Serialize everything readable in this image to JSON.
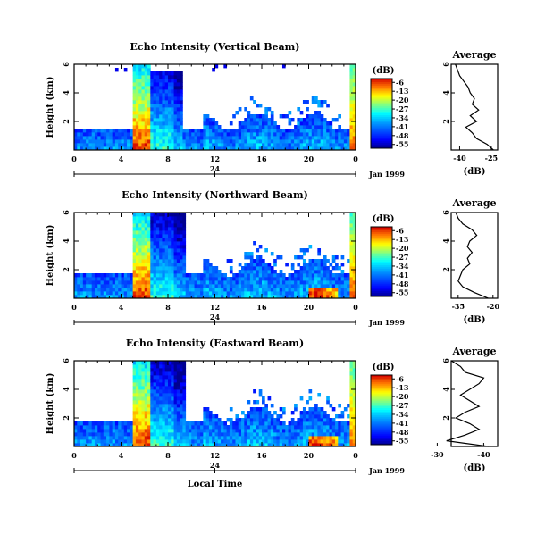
{
  "chart_data": [
    {
      "type": "heatmap",
      "title": "Echo Intensity (Vertical Beam)",
      "ylabel": "Height (km)",
      "xlabel": "",
      "x_ticks": [
        "0",
        "4",
        "8",
        "12",
        "16",
        "20",
        "0"
      ],
      "y_ticks": [
        "6",
        "4",
        "2"
      ],
      "date_label": "Jan 1999",
      "date_axis_label": "24",
      "xlim": [
        0,
        24
      ],
      "ylim": [
        0,
        6
      ],
      "colorbar": {
        "unit": "(dB)",
        "ticks": [
          "-6",
          "-13",
          "-20",
          "-27",
          "-34",
          "-41",
          "-48",
          "-55"
        ],
        "range": [
          -58,
          -3
        ]
      },
      "layers": {
        "base_top_km": 1.6,
        "strong_echo_x": [
          5.0,
          9.3
        ],
        "late_spike_x": [
          23.5,
          24.0
        ]
      },
      "average": {
        "title": "Average",
        "xlabel": "(dB)",
        "x_ticks": [
          "-40",
          "-25"
        ],
        "xlim": [
          -44,
          -22
        ],
        "y_ticks": [
          "6",
          "4",
          "2"
        ],
        "profile": {
          "height_km": [
            6.0,
            5.6,
            5.2,
            4.8,
            4.4,
            4.0,
            3.6,
            3.2,
            2.8,
            2.4,
            2.0,
            1.6,
            1.2,
            0.8,
            0.4,
            0.0
          ],
          "value_db": [
            -42,
            -41,
            -40,
            -38,
            -36,
            -35,
            -33,
            -34,
            -31,
            -35,
            -32,
            -37,
            -34,
            -32,
            -27,
            -24
          ]
        }
      }
    },
    {
      "type": "heatmap",
      "title": "Echo Intensity (Northward Beam)",
      "ylabel": "Height (km)",
      "xlabel": "",
      "x_ticks": [
        "0",
        "4",
        "8",
        "12",
        "16",
        "20",
        "0"
      ],
      "y_ticks": [
        "6",
        "4",
        "2"
      ],
      "date_label": "Jan 1999",
      "date_axis_label": "24",
      "xlim": [
        0,
        24
      ],
      "ylim": [
        0,
        6
      ],
      "colorbar": {
        "unit": "(dB)",
        "ticks": [
          "-6",
          "-13",
          "-20",
          "-27",
          "-34",
          "-41",
          "-48",
          "-55"
        ],
        "range": [
          -58,
          -3
        ]
      },
      "layers": {
        "base_top_km": 1.8,
        "strong_echo_x": [
          5.0,
          9.5
        ],
        "late_spike_x": [
          23.4,
          24.0
        ]
      },
      "average": {
        "title": "Average",
        "xlabel": "(dB)",
        "x_ticks": [
          "-35",
          "-20"
        ],
        "xlim": [
          -38,
          -18
        ],
        "y_ticks": [
          "6",
          "4",
          "2"
        ],
        "profile": {
          "height_km": [
            6.0,
            5.6,
            5.2,
            4.8,
            4.4,
            4.0,
            3.6,
            3.2,
            2.8,
            2.4,
            2.0,
            1.6,
            1.2,
            0.8,
            0.4,
            0.0
          ],
          "value_db": [
            -36,
            -35,
            -33,
            -29,
            -27,
            -30,
            -31,
            -29,
            -31,
            -30,
            -33,
            -34,
            -35,
            -33,
            -28,
            -22
          ]
        }
      }
    },
    {
      "type": "heatmap",
      "title": "Echo Intensity (Eastward Beam)",
      "ylabel": "Height (km)",
      "xlabel": "Local Time",
      "x_ticks": [
        "0",
        "4",
        "8",
        "12",
        "16",
        "20",
        "0"
      ],
      "y_ticks": [
        "6",
        "4",
        "2"
      ],
      "date_label": "Jan 1999",
      "date_axis_label": "24",
      "xlim": [
        0,
        24
      ],
      "ylim": [
        0,
        6
      ],
      "colorbar": {
        "unit": "(dB)",
        "ticks": [
          "-6",
          "-13",
          "-20",
          "-27",
          "-34",
          "-41",
          "-48",
          "-55"
        ],
        "range": [
          -58,
          -3
        ]
      },
      "layers": {
        "base_top_km": 1.8,
        "strong_echo_x": [
          5.0,
          9.4
        ],
        "late_spike_x": [
          23.5,
          24.0
        ]
      },
      "average": {
        "title": "Average",
        "xlabel": "(dB)",
        "x_ticks": [
          "-30",
          "-40"
        ],
        "xlim": [
          -33,
          -43
        ],
        "y_ticks": [
          "6",
          "4",
          "2"
        ],
        "profile": {
          "height_km": [
            6.0,
            5.6,
            5.2,
            4.8,
            4.4,
            4.0,
            3.6,
            3.2,
            2.8,
            2.4,
            2.0,
            1.6,
            1.2,
            0.8,
            0.4,
            0.0
          ],
          "value_db": [
            -33,
            -35,
            -36,
            -40,
            -39,
            -37,
            -35,
            -37,
            -39,
            -36,
            -34,
            -37,
            -39,
            -36,
            -32,
            -41
          ]
        }
      }
    }
  ]
}
